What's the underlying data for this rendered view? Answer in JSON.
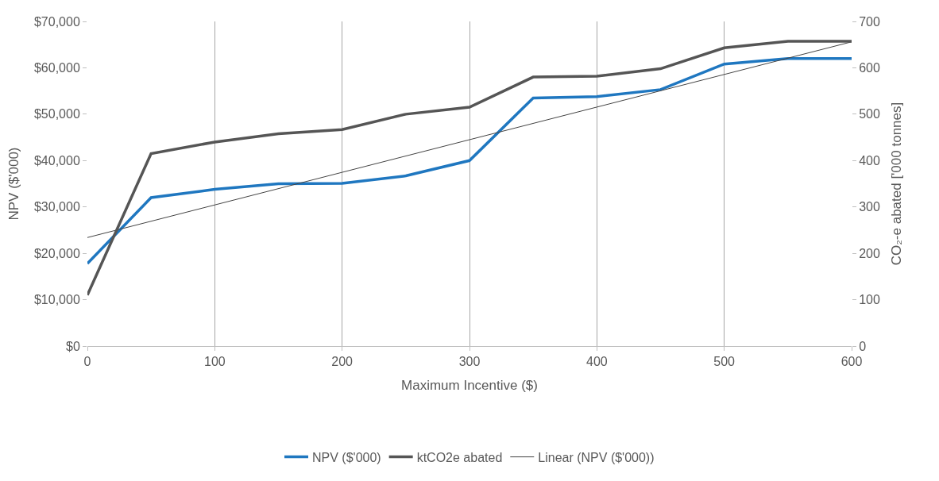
{
  "chart_data": {
    "type": "line",
    "xlabel": "Maximum Incentive ($)",
    "ylabel": "NPV ($'000)",
    "y2label": "CO₂-e abated ['000 tonnes]",
    "x": [
      0,
      50,
      100,
      150,
      200,
      250,
      300,
      350,
      400,
      450,
      500,
      550,
      600
    ],
    "series": [
      {
        "name": "NPV ($'000)",
        "color": "#1f77c0",
        "values": [
          17800,
          32000,
          33800,
          35000,
          35100,
          36700,
          40000,
          53500,
          53800,
          55300,
          60800,
          62000,
          62000
        ]
      },
      {
        "name": "ktCO2e abated",
        "color": "#555555",
        "axis": "y2",
        "values": [
          110,
          415,
          440,
          458,
          467,
          500,
          515,
          580,
          582,
          598,
          643,
          657,
          657
        ]
      },
      {
        "name": "Linear (NPV ($'000))",
        "color": "#444444",
        "x": [
          0,
          600
        ],
        "values": [
          23400,
          65600
        ]
      }
    ],
    "xlim": [
      0,
      600
    ],
    "xticks": [
      0,
      100,
      200,
      300,
      400,
      500,
      600
    ],
    "ylim": [
      0,
      70000
    ],
    "yticks": [
      {
        "value": 0,
        "label": "$0"
      },
      {
        "value": 10000,
        "label": "$10,000"
      },
      {
        "value": 20000,
        "label": "$20,000"
      },
      {
        "value": 30000,
        "label": "$30,000"
      },
      {
        "value": 40000,
        "label": "$40,000"
      },
      {
        "value": 50000,
        "label": "$50,000"
      },
      {
        "value": 60000,
        "label": "$60,000"
      },
      {
        "value": 70000,
        "label": "$70,000"
      }
    ],
    "y2lim": [
      0,
      700
    ],
    "y2ticks": [
      0,
      100,
      200,
      300,
      400,
      500,
      600,
      700
    ],
    "grid": "x",
    "legend": "bottom",
    "line_style": "solid"
  }
}
